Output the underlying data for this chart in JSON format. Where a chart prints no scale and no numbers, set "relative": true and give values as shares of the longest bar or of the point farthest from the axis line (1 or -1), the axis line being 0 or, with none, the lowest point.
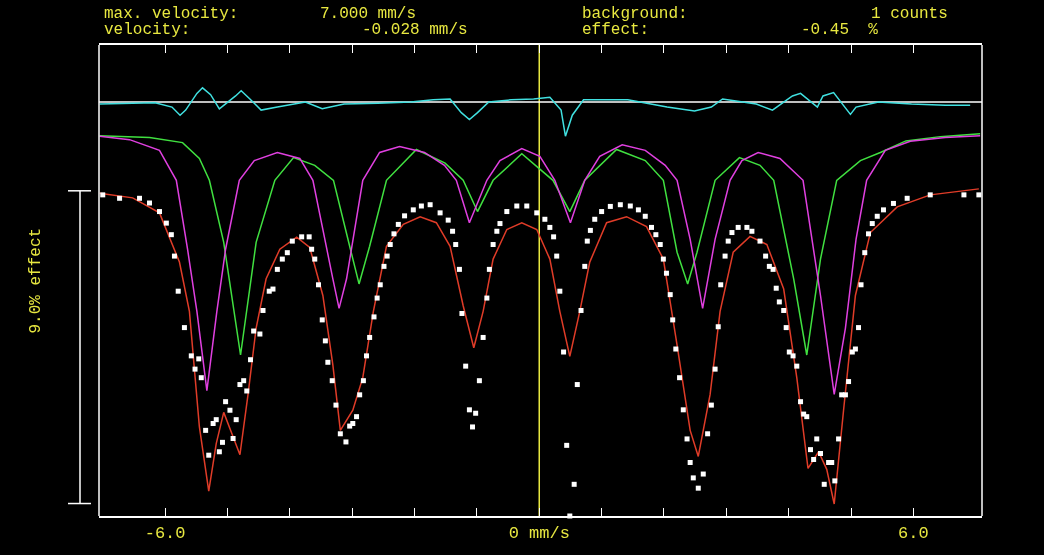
{
  "chart_data": {
    "type": "line",
    "relative": true,
    "ylabel": "9.0% effect",
    "annotations": [
      "max. velocity:",
      "7.000 mm/s",
      "background:",
      "1 counts",
      "velocity:",
      "-0.028 mm/s",
      "effect:",
      "-0.45  %"
    ],
    "xlim": [
      -7.06,
      7.1
    ],
    "xticks": [
      {
        "value": -6,
        "label": "-6.0"
      },
      {
        "value": -5,
        "label": null
      },
      {
        "value": -4,
        "label": null
      },
      {
        "value": -3,
        "label": null
      },
      {
        "value": -2,
        "label": null
      },
      {
        "value": -1,
        "label": null
      },
      {
        "value": 0,
        "label": "0 mm/s"
      },
      {
        "value": 1,
        "label": null
      },
      {
        "value": 2,
        "label": null
      },
      {
        "value": 3,
        "label": null
      },
      {
        "value": 4,
        "label": null
      },
      {
        "value": 5,
        "label": null
      },
      {
        "value": 6,
        "label": "6.0"
      }
    ],
    "tick_labels": "x",
    "grid": false,
    "legend": false,
    "ref_lines": [
      {
        "axis": "x",
        "value": 0,
        "label": null,
        "color": "#e8e840"
      },
      {
        "axis": "y",
        "value": 0.967,
        "label": null,
        "color": "#ffffff"
      }
    ],
    "series": [
      {
        "color": "#40e0e0",
        "x": [
          -7.05,
          -6.52,
          -6.16,
          -5.89,
          -5.76,
          -5.67,
          -5.49,
          -5.4,
          -5.27,
          -5.13,
          -4.87,
          -4.78,
          -4.64,
          -4.46,
          -4.2,
          -3.75,
          -3.48,
          -3.13,
          -2.59,
          -2.06,
          -1.7,
          -1.43,
          -1.25,
          -1.12,
          -0.99,
          -0.81,
          -0.45,
          -0.09,
          0.17,
          0.35,
          0.42,
          0.53,
          0.71,
          1.42,
          2.05,
          2.49,
          2.76,
          2.94,
          3.48,
          3.74,
          4.06,
          4.19,
          4.46,
          4.55,
          4.72,
          4.9,
          4.99,
          5.08,
          5.44,
          5.97,
          6.51,
          6.91
        ],
        "values": [
          0.962,
          0.964,
          0.965,
          0.955,
          0.936,
          0.948,
          0.987,
          1.0,
          0.984,
          0.951,
          0.981,
          0.993,
          0.974,
          0.948,
          0.955,
          0.967,
          0.951,
          0.962,
          0.964,
          0.967,
          0.972,
          0.974,
          0.942,
          0.926,
          0.942,
          0.967,
          0.972,
          0.974,
          0.978,
          0.948,
          0.887,
          0.936,
          0.972,
          0.972,
          0.955,
          0.946,
          0.955,
          0.974,
          0.962,
          0.948,
          0.981,
          0.987,
          0.955,
          0.981,
          0.989,
          0.955,
          0.938,
          0.955,
          0.967,
          0.962,
          0.959,
          0.959
        ]
      },
      {
        "color": "#40e040",
        "x": [
          -7.05,
          -6.25,
          -5.72,
          -5.45,
          -5.29,
          -5.06,
          -4.79,
          -4.54,
          -4.24,
          -3.94,
          -3.6,
          -3.3,
          -3.04,
          -2.89,
          -2.72,
          -2.45,
          -1.97,
          -1.51,
          -1.22,
          -0.99,
          -0.74,
          -0.28,
          0.22,
          0.49,
          0.73,
          1.24,
          1.7,
          1.99,
          2.21,
          2.38,
          2.53,
          2.82,
          3.21,
          3.54,
          3.76,
          4.08,
          4.29,
          4.51,
          4.77,
          5.15,
          5.47,
          5.88,
          6.43,
          7.07
        ],
        "values": [
          0.888,
          0.884,
          0.872,
          0.835,
          0.784,
          0.639,
          0.376,
          0.639,
          0.784,
          0.837,
          0.819,
          0.784,
          0.63,
          0.542,
          0.63,
          0.784,
          0.856,
          0.824,
          0.784,
          0.711,
          0.784,
          0.846,
          0.784,
          0.711,
          0.784,
          0.856,
          0.83,
          0.784,
          0.616,
          0.542,
          0.616,
          0.784,
          0.837,
          0.819,
          0.784,
          0.554,
          0.376,
          0.6,
          0.784,
          0.83,
          0.849,
          0.876,
          0.886,
          0.893
        ]
      },
      {
        "color": "#e040e0",
        "x": [
          -7.05,
          -6.57,
          -6.09,
          -5.82,
          -5.64,
          -5.49,
          -5.33,
          -5.17,
          -5.03,
          -4.81,
          -4.57,
          -4.2,
          -3.84,
          -3.63,
          -3.31,
          -3.21,
          -3.09,
          -2.83,
          -2.56,
          -2.24,
          -1.84,
          -1.52,
          -1.33,
          -1.12,
          -0.84,
          -0.63,
          -0.28,
          0.01,
          0.25,
          0.5,
          0.73,
          0.97,
          1.33,
          1.7,
          2.02,
          2.21,
          2.42,
          2.62,
          2.82,
          3.06,
          3.25,
          3.51,
          3.86,
          4.23,
          4.51,
          4.73,
          4.91,
          5.08,
          5.25,
          5.55,
          5.95,
          6.51,
          7.07
        ],
        "values": [
          0.887,
          0.879,
          0.854,
          0.784,
          0.623,
          0.478,
          0.293,
          0.478,
          0.623,
          0.784,
          0.83,
          0.849,
          0.835,
          0.784,
          0.554,
          0.485,
          0.554,
          0.784,
          0.849,
          0.863,
          0.849,
          0.819,
          0.784,
          0.685,
          0.784,
          0.83,
          0.858,
          0.84,
          0.784,
          0.685,
          0.784,
          0.84,
          0.867,
          0.854,
          0.819,
          0.784,
          0.646,
          0.485,
          0.646,
          0.784,
          0.83,
          0.849,
          0.835,
          0.784,
          0.515,
          0.284,
          0.439,
          0.646,
          0.784,
          0.854,
          0.875,
          0.884,
          0.888
        ]
      },
      {
        "color": "#e03c28",
        "x": [
          -7.05,
          -6.52,
          -6.09,
          -5.77,
          -5.61,
          -5.45,
          -5.3,
          -5.18,
          -5.06,
          -4.91,
          -4.8,
          -4.67,
          -4.54,
          -4.38,
          -4.16,
          -3.89,
          -3.68,
          -3.47,
          -3.31,
          -3.19,
          -2.99,
          -2.83,
          -2.66,
          -2.45,
          -2.18,
          -1.91,
          -1.65,
          -1.43,
          -1.22,
          -1.05,
          -0.9,
          -0.74,
          -0.52,
          -0.28,
          -0.04,
          0.17,
          0.33,
          0.49,
          0.65,
          0.81,
          1.08,
          1.4,
          1.72,
          1.99,
          2.21,
          2.42,
          2.55,
          2.74,
          2.9,
          3.11,
          3.38,
          3.65,
          3.92,
          4.13,
          4.31,
          4.48,
          4.61,
          4.73,
          4.88,
          5.07,
          5.31,
          5.74,
          6.27,
          7.05
        ],
        "values": [
          0.754,
          0.743,
          0.708,
          0.593,
          0.478,
          0.208,
          0.058,
          0.169,
          0.242,
          0.185,
          0.143,
          0.284,
          0.439,
          0.554,
          0.623,
          0.651,
          0.627,
          0.515,
          0.353,
          0.2,
          0.247,
          0.323,
          0.478,
          0.63,
          0.681,
          0.699,
          0.685,
          0.63,
          0.491,
          0.393,
          0.478,
          0.6,
          0.669,
          0.685,
          0.669,
          0.6,
          0.478,
          0.373,
          0.478,
          0.593,
          0.685,
          0.699,
          0.676,
          0.6,
          0.399,
          0.2,
          0.139,
          0.284,
          0.478,
          0.616,
          0.653,
          0.634,
          0.53,
          0.323,
          0.111,
          0.15,
          0.109,
          0.028,
          0.247,
          0.515,
          0.662,
          0.722,
          0.75,
          0.764
        ]
      },
      {
        "type": "scatter",
        "marker": "square",
        "color": "#ffffff",
        "x": [
          -7.0,
          -6.73,
          -6.41,
          -6.25,
          -6.09,
          -5.98,
          -5.9,
          -5.85,
          -5.79,
          -5.69,
          -5.58,
          -5.52,
          -5.46,
          -5.42,
          -5.35,
          -5.3,
          -5.23,
          -5.18,
          -5.13,
          -5.08,
          -5.03,
          -4.96,
          -4.91,
          -4.86,
          -4.8,
          -4.74,
          -4.69,
          -4.63,
          -4.58,
          -4.48,
          -4.43,
          -4.33,
          -4.27,
          -4.2,
          -4.12,
          -4.04,
          -3.96,
          -3.81,
          -3.69,
          -3.65,
          -3.6,
          -3.54,
          -3.48,
          -3.43,
          -3.39,
          -3.32,
          -3.26,
          -3.19,
          -3.1,
          -3.04,
          -2.99,
          -2.93,
          -2.88,
          -2.82,
          -2.77,
          -2.72,
          -2.65,
          -2.6,
          -2.55,
          -2.49,
          -2.44,
          -2.39,
          -2.33,
          -2.26,
          -2.16,
          -2.02,
          -1.89,
          -1.75,
          -1.59,
          -1.46,
          -1.39,
          -1.34,
          -1.28,
          -1.24,
          -1.18,
          -1.12,
          -1.07,
          -1.02,
          -0.96,
          -0.9,
          -0.84,
          -0.8,
          -0.74,
          -0.68,
          -0.63,
          -0.52,
          -0.36,
          -0.2,
          -0.04,
          0.09,
          0.17,
          0.23,
          0.28,
          0.33,
          0.39,
          0.44,
          0.49,
          0.56,
          0.61,
          0.67,
          0.73,
          0.77,
          0.82,
          0.89,
          1.0,
          1.14,
          1.3,
          1.46,
          1.59,
          1.7,
          1.8,
          1.87,
          1.94,
          1.99,
          2.04,
          2.1,
          2.14,
          2.19,
          2.25,
          2.31,
          2.37,
          2.42,
          2.47,
          2.55,
          2.63,
          2.7,
          2.76,
          2.82,
          2.87,
          2.91,
          2.98,
          3.03,
          3.09,
          3.19,
          3.33,
          3.41,
          3.54,
          3.63,
          3.69,
          3.75,
          3.8,
          3.85,
          3.92,
          3.96,
          4.01,
          4.07,
          4.13,
          4.19,
          4.24,
          4.29,
          4.35,
          4.4,
          4.45,
          4.51,
          4.57,
          4.64,
          4.69,
          4.74,
          4.8,
          4.85,
          4.91,
          4.96,
          5.02,
          5.07,
          5.12,
          5.16,
          5.22,
          5.28,
          5.34,
          5.42,
          5.52,
          5.68,
          5.9,
          6.27,
          6.81,
          7.05
        ],
        "values": [
          0.75,
          0.742,
          0.742,
          0.731,
          0.711,
          0.684,
          0.657,
          0.607,
          0.525,
          0.44,
          0.374,
          0.343,
          0.367,
          0.323,
          0.2,
          0.142,
          0.216,
          0.225,
          0.15,
          0.172,
          0.267,
          0.247,
          0.181,
          0.225,
          0.307,
          0.316,
          0.292,
          0.365,
          0.432,
          0.425,
          0.48,
          0.525,
          0.53,
          0.576,
          0.6,
          0.615,
          0.642,
          0.652,
          0.652,
          0.623,
          0.6,
          0.54,
          0.458,
          0.409,
          0.359,
          0.316,
          0.259,
          0.192,
          0.173,
          0.21,
          0.216,
          0.232,
          0.283,
          0.316,
          0.374,
          0.417,
          0.465,
          0.509,
          0.54,
          0.583,
          0.607,
          0.634,
          0.659,
          0.681,
          0.701,
          0.715,
          0.724,
          0.727,
          0.708,
          0.691,
          0.665,
          0.634,
          0.576,
          0.473,
          0.35,
          0.248,
          0.208,
          0.24,
          0.316,
          0.417,
          0.509,
          0.576,
          0.634,
          0.665,
          0.683,
          0.711,
          0.724,
          0.724,
          0.708,
          0.693,
          0.674,
          0.652,
          0.607,
          0.525,
          0.383,
          0.165,
          0.0,
          0.074,
          0.307,
          0.48,
          0.583,
          0.642,
          0.667,
          0.693,
          0.711,
          0.723,
          0.727,
          0.724,
          0.715,
          0.7,
          0.674,
          0.657,
          0.634,
          0.6,
          0.567,
          0.517,
          0.458,
          0.39,
          0.323,
          0.248,
          0.18,
          0.125,
          0.089,
          0.065,
          0.098,
          0.192,
          0.259,
          0.343,
          0.442,
          0.54,
          0.607,
          0.642,
          0.662,
          0.674,
          0.674,
          0.665,
          0.642,
          0.607,
          0.583,
          0.576,
          0.532,
          0.5,
          0.48,
          0.44,
          0.383,
          0.374,
          0.35,
          0.267,
          0.238,
          0.232,
          0.155,
          0.132,
          0.18,
          0.146,
          0.074,
          0.125,
          0.125,
          0.082,
          0.18,
          0.283,
          0.283,
          0.314,
          0.383,
          0.39,
          0.44,
          0.54,
          0.615,
          0.659,
          0.683,
          0.7,
          0.715,
          0.73,
          0.742,
          0.75,
          0.75,
          0.75
        ]
      }
    ]
  }
}
